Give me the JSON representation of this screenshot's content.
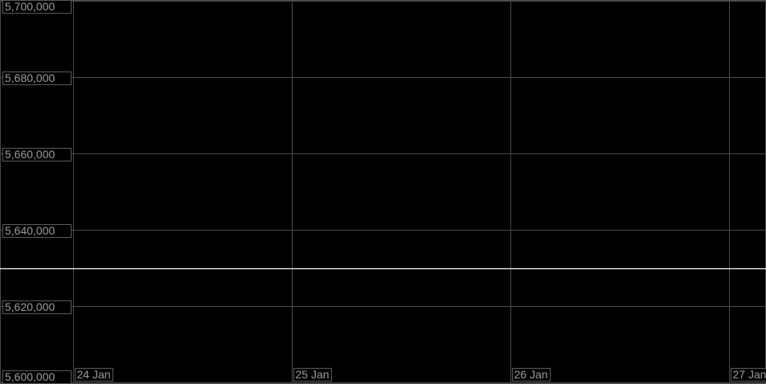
{
  "chart_data": {
    "type": "line",
    "title": "",
    "xlabel": "",
    "ylabel": "",
    "x_tick_labels": [
      "24 Jan",
      "25 Jan",
      "26 Jan",
      "27 Jan"
    ],
    "y_tick_labels": [
      "5,700,000",
      "5,680,000",
      "5,660,000",
      "5,640,000",
      "5,620,000",
      "5,600,000"
    ],
    "y_ticks": [
      5700000,
      5680000,
      5660000,
      5640000,
      5620000,
      5600000
    ],
    "ylim": [
      5600000,
      5700000
    ],
    "grid": true,
    "series": [
      {
        "x": [
          "24 Jan",
          "25 Jan",
          "26 Jan",
          "27 Jan"
        ],
        "values": [
          5630000,
          5630000,
          5630000,
          5630000
        ]
      }
    ],
    "colors": {
      "background": "#000000",
      "grid": "#4a4a4a",
      "line": "#ffffff",
      "label": "#9a9a9a"
    }
  }
}
